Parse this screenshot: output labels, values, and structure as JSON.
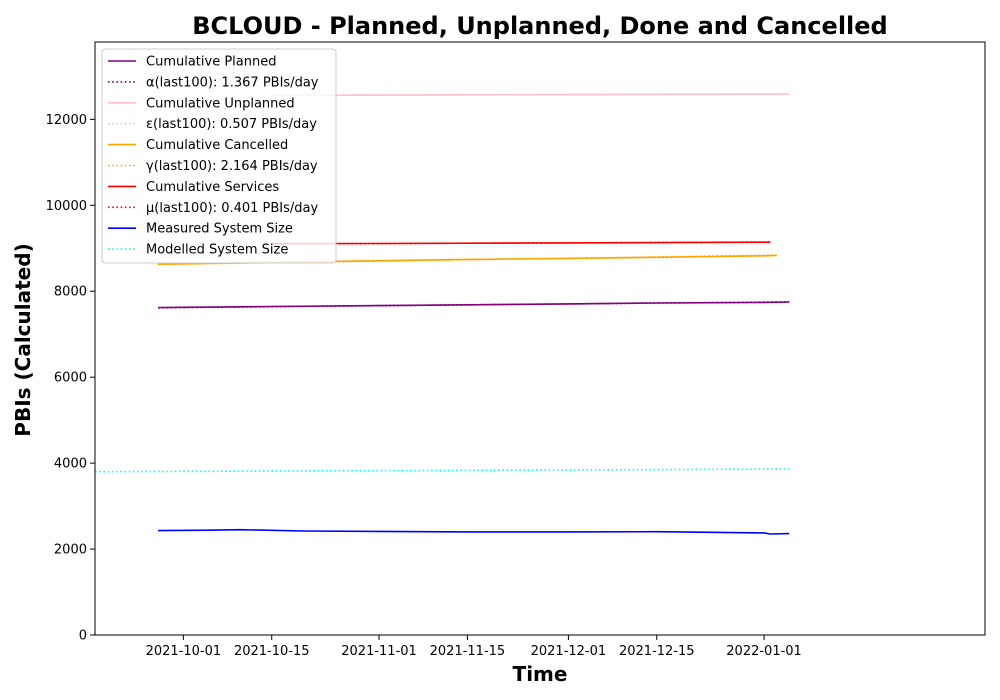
{
  "chart_data": {
    "type": "line",
    "title": "BCLOUD - Planned, Unplanned, Done  and Cancelled",
    "xlabel": "Time",
    "ylabel": "PBIs (Calculated)",
    "x_type": "date",
    "xlim": [
      "2021-09-17",
      "2022-02-05"
    ],
    "ylim": [
      0,
      13800
    ],
    "x_ticks": [
      "2021-10-01",
      "2021-10-15",
      "2021-11-01",
      "2021-11-15",
      "2021-12-01",
      "2021-12-15",
      "2022-01-01"
    ],
    "y_ticks": [
      0,
      2000,
      4000,
      6000,
      8000,
      10000,
      12000
    ],
    "grid": false,
    "legend_position": "top-left",
    "series": [
      {
        "name": "Cumulative Planned",
        "color": "#800080",
        "style": "solid",
        "x": [
          "2021-09-27",
          "2021-10-15",
          "2021-11-01",
          "2021-11-15",
          "2021-12-01",
          "2021-12-15",
          "2022-01-01",
          "2022-01-05"
        ],
        "y": [
          7620,
          7645,
          7665,
          7685,
          7705,
          7725,
          7740,
          7750
        ]
      },
      {
        "name": "α(last100): 1.367 PBIs/day",
        "color": "#800080",
        "style": "dotted",
        "x": [
          "2021-09-27",
          "2022-01-05"
        ],
        "y": [
          7615,
          7755
        ]
      },
      {
        "name": "Cumulative Unplanned",
        "color": "#ffc0cb",
        "style": "solid",
        "x": [
          "2021-10-15",
          "2021-11-01",
          "2021-12-01",
          "2022-01-01",
          "2022-01-05"
        ],
        "y": [
          12560,
          12565,
          12575,
          12585,
          12590
        ]
      },
      {
        "name": "ε(last100): 0.507 PBIs/day",
        "color": "#ffc0cb",
        "style": "dotted",
        "x": [
          "2021-10-15",
          "2022-01-05"
        ],
        "y": [
          12555,
          12595
        ]
      },
      {
        "name": "Cumulative Cancelled",
        "color": "#ffa500",
        "style": "solid",
        "x": [
          "2021-09-27",
          "2021-10-15",
          "2021-11-01",
          "2021-11-15",
          "2021-12-01",
          "2021-12-15",
          "2022-01-01",
          "2022-01-03"
        ],
        "y": [
          8630,
          8670,
          8710,
          8740,
          8765,
          8790,
          8825,
          8835
        ]
      },
      {
        "name": "γ(last100): 2.164 PBIs/day",
        "color": "#ffa500",
        "style": "dotted",
        "x": [
          "2021-09-27",
          "2022-01-03"
        ],
        "y": [
          8625,
          8840
        ]
      },
      {
        "name": "Cumulative Services",
        "color": "#ff0000",
        "style": "solid",
        "x": [
          "2021-10-15",
          "2021-11-01",
          "2021-12-01",
          "2022-01-01",
          "2022-01-02"
        ],
        "y": [
          9105,
          9110,
          9125,
          9140,
          9140
        ]
      },
      {
        "name": "μ(last100): 0.401 PBIs/day",
        "color": "#ff0000",
        "style": "dotted",
        "x": [
          "2021-10-15",
          "2022-01-02"
        ],
        "y": [
          9100,
          9145
        ]
      },
      {
        "name": "Measured System Size",
        "color": "#0000ff",
        "style": "solid",
        "x": [
          "2021-09-27",
          "2021-10-05",
          "2021-10-10",
          "2021-10-20",
          "2021-11-01",
          "2021-11-15",
          "2021-12-01",
          "2021-12-15",
          "2022-01-01",
          "2022-01-02",
          "2022-01-05"
        ],
        "y": [
          2430,
          2440,
          2450,
          2420,
          2410,
          2400,
          2400,
          2405,
          2375,
          2350,
          2360
        ]
      },
      {
        "name": "Modelled System Size",
        "color": "#00ffff",
        "style": "dotted",
        "x": [
          "2021-09-17",
          "2022-01-05"
        ],
        "y": [
          3800,
          3860
        ]
      }
    ]
  }
}
